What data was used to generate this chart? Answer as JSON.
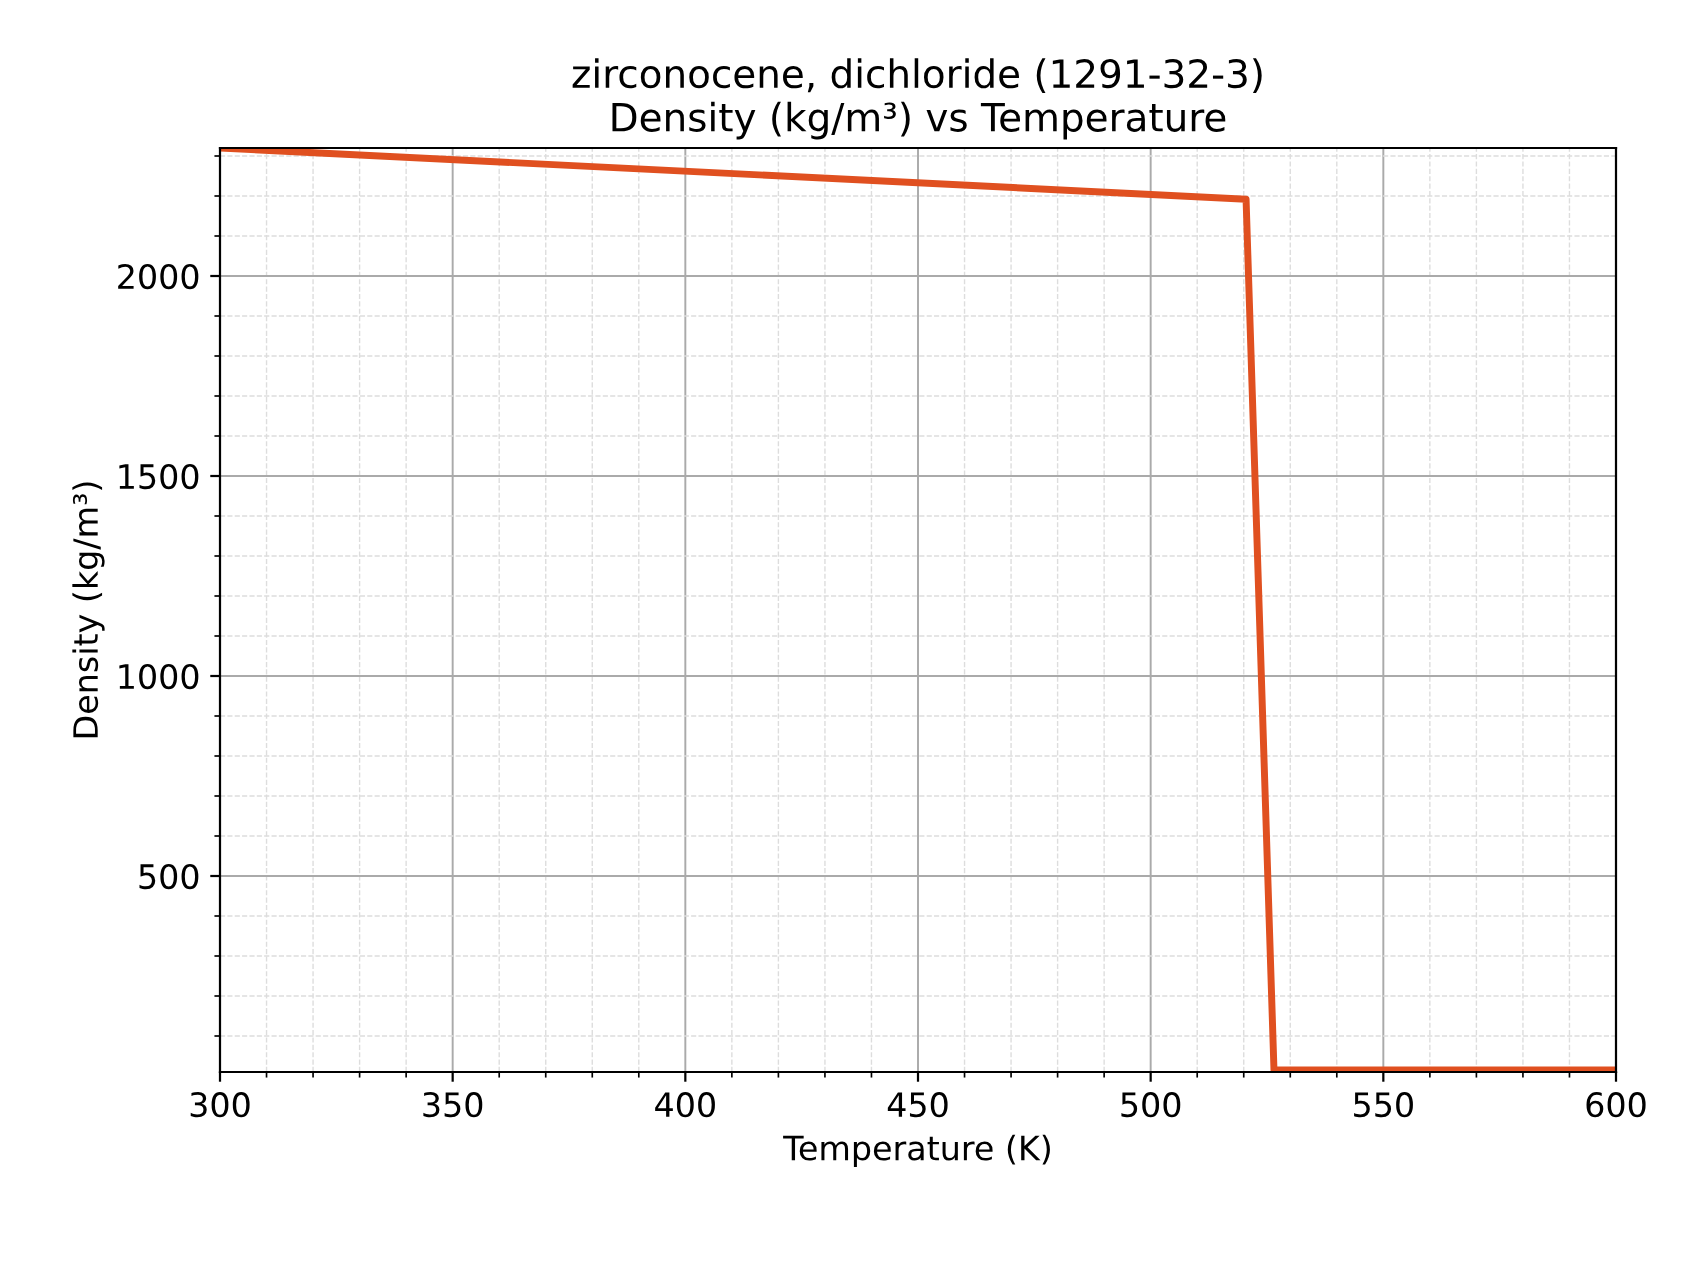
{
  "chart_data": {
    "type": "line",
    "title": "zirconocene, dichloride (1291-32-3)\nDensity (kg/m³) vs Temperature",
    "xlabel": "Temperature (K)",
    "ylabel": "Density (kg/m³)",
    "series": [
      {
        "color": "#e05020",
        "x": [
          300,
          520.5,
          526.5,
          600
        ],
        "values": [
          2320,
          2192,
          15,
          15
        ]
      }
    ],
    "xlim": [
      300,
      600
    ],
    "xticks": [
      300,
      350,
      400,
      450,
      500,
      550,
      600
    ],
    "ylim": [
      10,
      2320
    ],
    "yticks": [
      500,
      1000,
      1500,
      2000
    ],
    "grid": true,
    "line_style": "solid",
    "marker": "none"
  }
}
